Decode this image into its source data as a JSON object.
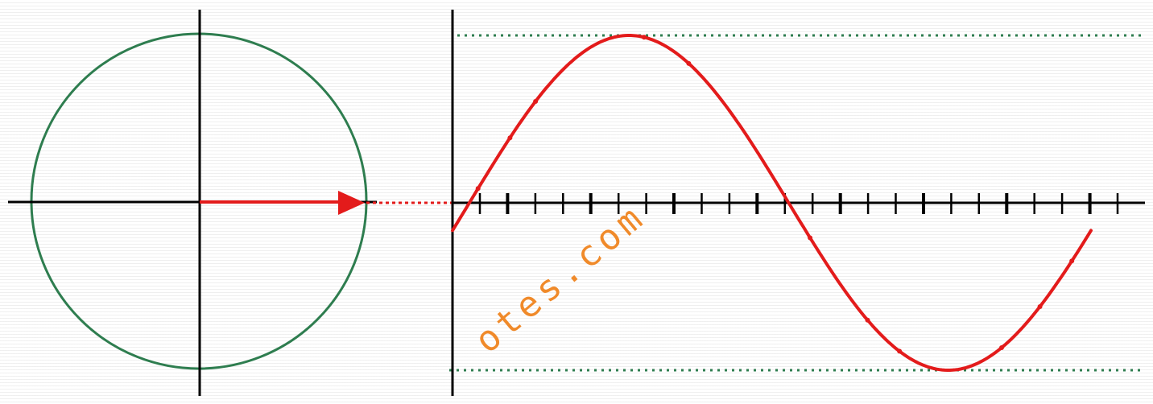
{
  "diagram": {
    "description_colors": {
      "circle": "#2e7d4f",
      "axes": "#000000",
      "phasor": "#e31b1b",
      "wave": "#e31b1b",
      "guides": "#2e7d4f",
      "watermark": "#f08a2a"
    },
    "wave": {
      "phase_offset_deg": -25,
      "cycles": 1,
      "tick_count": 24
    },
    "icons": {
      "phasor_head": "arrowhead-icon"
    }
  },
  "watermark": {
    "text": "otes.com"
  }
}
